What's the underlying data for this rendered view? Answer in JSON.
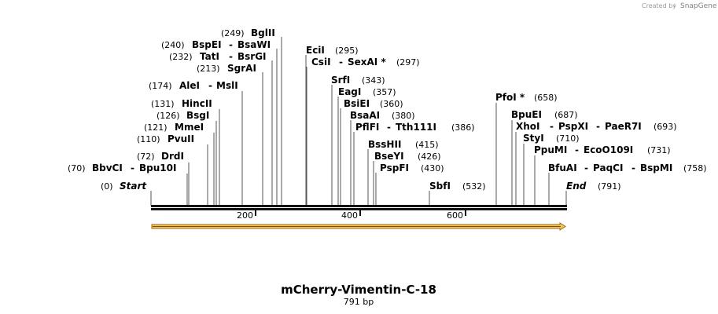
{
  "credit": {
    "created_by": "Created by",
    "brand": "SnapGene"
  },
  "construct": {
    "name": "mCherry-Vimentin-C-18",
    "length_label": "791 bp",
    "length": 791
  },
  "ticks": [
    "200",
    "400",
    "600"
  ],
  "ends": {
    "start": {
      "pos": "(0)",
      "label": "Start"
    },
    "end": {
      "pos": "(791)",
      "label": "End"
    }
  },
  "sites": {
    "bglII": {
      "pos": "(249)",
      "name": "BglII"
    },
    "bspEI": {
      "pos": "(240)",
      "name": "BspEI",
      "alt": "BsaWI"
    },
    "tatI": {
      "pos": "(232)",
      "name": "TatI",
      "alt": "BsrGI"
    },
    "sgrAI": {
      "pos": "(213)",
      "name": "SgrAI"
    },
    "aleI": {
      "pos": "(174)",
      "name": "AleI",
      "alt": "MslI"
    },
    "hincII": {
      "pos": "(131)",
      "name": "HincII"
    },
    "bsgI": {
      "pos": "(126)",
      "name": "BsgI"
    },
    "mmeI": {
      "pos": "(121)",
      "name": "MmeI"
    },
    "pvuII": {
      "pos": "(110)",
      "name": "PvuII"
    },
    "drdI": {
      "pos": "(72)",
      "name": "DrdI"
    },
    "bbvCI": {
      "pos": "(70)",
      "name": "BbvCI",
      "alt": "Bpu10I"
    },
    "eciI": {
      "pos": "(295)",
      "name": "EciI"
    },
    "csiI": {
      "name": "CsiI",
      "alt": "SexAI *",
      "pos": "(297)"
    },
    "srfI": {
      "name": "SrfI",
      "pos": "(343)"
    },
    "eagI": {
      "name": "EagI",
      "pos": "(357)"
    },
    "bsiEI": {
      "name": "BsiEI",
      "pos": "(360)"
    },
    "bsaAI": {
      "name": "BsaAI",
      "pos": "(380)"
    },
    "pflFI": {
      "name": "PflFI",
      "alt": "Tth111I",
      "pos": "(386)"
    },
    "bssHII": {
      "name": "BssHII",
      "pos": "(415)"
    },
    "bseYI": {
      "name": "BseYI",
      "pos": "(426)"
    },
    "pspFI": {
      "name": "PspFI",
      "pos": "(430)"
    },
    "sbfI": {
      "name": "SbfI",
      "pos": "(532)"
    },
    "pfoI": {
      "name": "PfoI *",
      "pos": "(658)"
    },
    "bpuEI": {
      "name": "BpuEI",
      "pos": "(687)"
    },
    "xhoI": {
      "name": "XhoI",
      "alt": "PspXI",
      "alt2": "PaeR7I",
      "pos": "(693)"
    },
    "styI": {
      "name": "StyI",
      "pos": "(710)"
    },
    "ppuMI": {
      "name": "PpuMI",
      "alt": "EcoO109I",
      "pos": "(731)"
    },
    "bfuAI": {
      "name": "BfuAI",
      "alt": "PaqCI",
      "alt2": "BspMI",
      "pos": "(758)"
    }
  },
  "colors": {
    "feature_fill": "#f5c45c",
    "feature_stroke": "#9a6a16",
    "backbone": "#111111",
    "line": "#555555"
  },
  "sep": "-"
}
